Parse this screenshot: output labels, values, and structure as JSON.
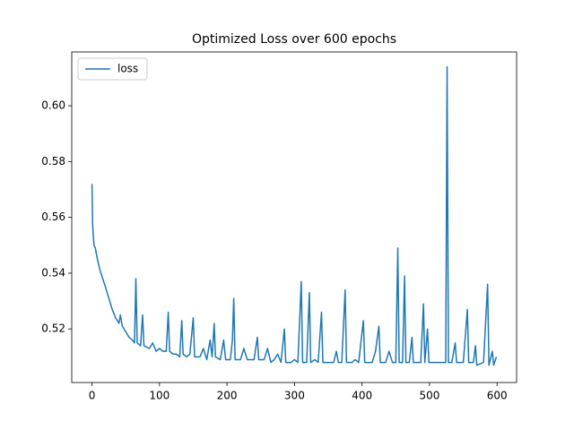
{
  "chart_data": {
    "type": "line",
    "title": "Optimized Loss over 600 epochs",
    "x": [
      0,
      1,
      3,
      5,
      8,
      12,
      16,
      20,
      25,
      30,
      35,
      40,
      42,
      45,
      50,
      55,
      60,
      63,
      65,
      67,
      72,
      75,
      77,
      85,
      90,
      95,
      100,
      105,
      110,
      113,
      115,
      120,
      125,
      130,
      133,
      135,
      140,
      145,
      150,
      152,
      160,
      165,
      170,
      175,
      178,
      181,
      183,
      190,
      195,
      198,
      205,
      208,
      210,
      212,
      220,
      225,
      230,
      240,
      245,
      247,
      255,
      260,
      265,
      270,
      275,
      280,
      285,
      287,
      295,
      300,
      305,
      310,
      312,
      318,
      322,
      324,
      330,
      335,
      340,
      342,
      350,
      358,
      362,
      365,
      370,
      375,
      377,
      385,
      390,
      395,
      402,
      404,
      410,
      415,
      420,
      425,
      427,
      435,
      440,
      445,
      450,
      453,
      455,
      460,
      463,
      465,
      470,
      474,
      476,
      482,
      487,
      491,
      493,
      497,
      499,
      505,
      510,
      515,
      520,
      524,
      526,
      528,
      533,
      538,
      540,
      545,
      550,
      556,
      558,
      565,
      568,
      570,
      580,
      586,
      588,
      593,
      595,
      599
    ],
    "series": [
      {
        "name": "loss",
        "color": "#1f77b4",
        "values": [
          0.572,
          0.557,
          0.55,
          0.549,
          0.545,
          0.541,
          0.538,
          0.535,
          0.531,
          0.527,
          0.524,
          0.522,
          0.525,
          0.521,
          0.519,
          0.517,
          0.516,
          0.515,
          0.538,
          0.515,
          0.514,
          0.525,
          0.514,
          0.513,
          0.515,
          0.512,
          0.513,
          0.512,
          0.512,
          0.526,
          0.512,
          0.511,
          0.511,
          0.51,
          0.523,
          0.511,
          0.51,
          0.511,
          0.524,
          0.51,
          0.51,
          0.513,
          0.509,
          0.516,
          0.51,
          0.522,
          0.51,
          0.509,
          0.516,
          0.509,
          0.509,
          0.516,
          0.531,
          0.509,
          0.509,
          0.513,
          0.509,
          0.509,
          0.517,
          0.509,
          0.509,
          0.513,
          0.508,
          0.509,
          0.511,
          0.508,
          0.52,
          0.508,
          0.508,
          0.509,
          0.508,
          0.537,
          0.508,
          0.508,
          0.533,
          0.508,
          0.509,
          0.508,
          0.526,
          0.508,
          0.508,
          0.508,
          0.512,
          0.508,
          0.508,
          0.534,
          0.508,
          0.508,
          0.509,
          0.508,
          0.523,
          0.508,
          0.508,
          0.508,
          0.512,
          0.521,
          0.508,
          0.508,
          0.512,
          0.508,
          0.508,
          0.549,
          0.508,
          0.508,
          0.539,
          0.508,
          0.508,
          0.517,
          0.508,
          0.508,
          0.508,
          0.529,
          0.508,
          0.52,
          0.508,
          0.508,
          0.508,
          0.508,
          0.508,
          0.508,
          0.614,
          0.508,
          0.508,
          0.515,
          0.508,
          0.508,
          0.508,
          0.527,
          0.508,
          0.508,
          0.514,
          0.507,
          0.508,
          0.536,
          0.507,
          0.512,
          0.507,
          0.51
        ]
      }
    ],
    "xlim": [
      -29.95,
      628.95
    ],
    "ylim": [
      0.5008,
      0.6193
    ],
    "xticks": [
      0,
      100,
      200,
      300,
      400,
      500,
      600
    ],
    "yticks": [
      0.52,
      0.54,
      0.56,
      0.58,
      {
        "value": 0.6,
        "label": "0.60"
      }
    ],
    "legend": "upper left"
  }
}
